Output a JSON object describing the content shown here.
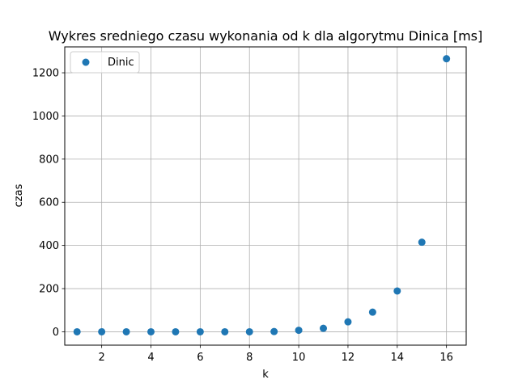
{
  "chart_data": {
    "type": "scatter",
    "title": "Wykres sredniego czasu wykonania od k dla algorytmu Dinica [ms]",
    "xlabel": "k",
    "ylabel": "czas",
    "xlim": [
      0.5,
      16.8
    ],
    "ylim": [
      -62,
      1320
    ],
    "xticks": [
      2,
      4,
      6,
      8,
      10,
      12,
      14,
      16
    ],
    "yticks": [
      0,
      200,
      400,
      600,
      800,
      1000,
      1200
    ],
    "grid": true,
    "legend_position": "top-left",
    "series": [
      {
        "name": "Dinic",
        "color": "#1f77b4",
        "x": [
          1,
          2,
          3,
          4,
          5,
          6,
          7,
          8,
          9,
          10,
          11,
          12,
          13,
          14,
          15,
          16
        ],
        "y": [
          0,
          0,
          0,
          0,
          0,
          0,
          0,
          0,
          1,
          7,
          16,
          46,
          91,
          189,
          415,
          1265
        ]
      }
    ]
  }
}
